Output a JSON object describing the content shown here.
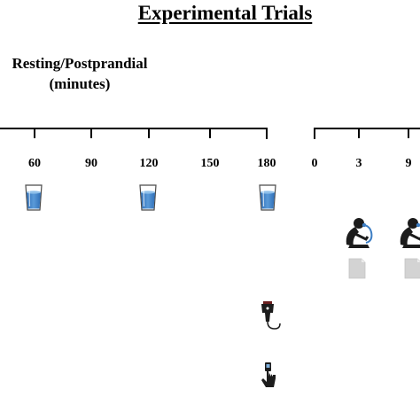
{
  "title": "Experimental Trials",
  "phase1": {
    "label_line1": "Resting/Postprandial",
    "label_line2": "(minutes)",
    "ticks": [
      "60",
      "90",
      "120",
      "150",
      "180"
    ]
  },
  "phase2": {
    "ticks": [
      "0",
      "3",
      "9"
    ]
  },
  "icons": {
    "water": "water-glass-icon",
    "exercise": "cyclist-with-mask-icon",
    "document": "document-icon",
    "ultrasound": "ultrasound-probe-icon",
    "finger_prick": "finger-prick-icon"
  },
  "colors": {
    "water": "#3d7ec4",
    "figure": "#1c1c1c",
    "document": "#cfcfcf"
  }
}
